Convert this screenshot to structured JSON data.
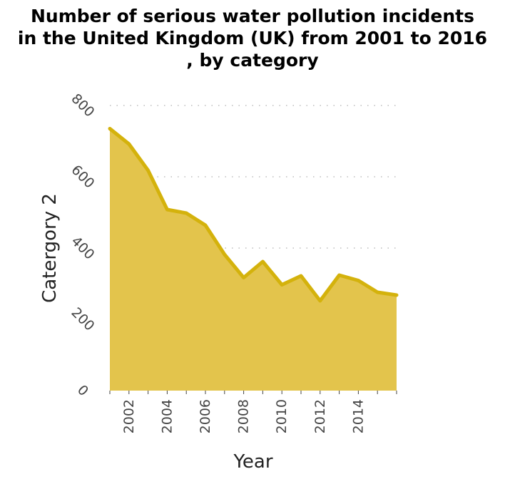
{
  "chart_data": {
    "type": "area",
    "title_lines": [
      "Number of serious water pollution incidents",
      "in the United Kingdom (UK) from 2001 to 2016",
      ", by category"
    ],
    "xlabel": "Year",
    "ylabel": "Catergory 2",
    "xlim": [
      2001,
      2016
    ],
    "ylim": [
      0,
      800
    ],
    "x_ticks": [
      2002,
      2004,
      2006,
      2008,
      2010,
      2012,
      2014
    ],
    "y_ticks": [
      0,
      200,
      400,
      600,
      800
    ],
    "grid": "horizontal dotted",
    "x": [
      2001,
      2002,
      2003,
      2004,
      2005,
      2006,
      2007,
      2008,
      2009,
      2010,
      2011,
      2012,
      2013,
      2014,
      2015,
      2016
    ],
    "series": [
      {
        "values": [
          735,
          692,
          618,
          508,
          498,
          464,
          382,
          317,
          362,
          297,
          322,
          252,
          324,
          309,
          276,
          268
        ]
      }
    ],
    "colors": {
      "fill": "#e3c44c",
      "line": "#d4b20c"
    }
  }
}
